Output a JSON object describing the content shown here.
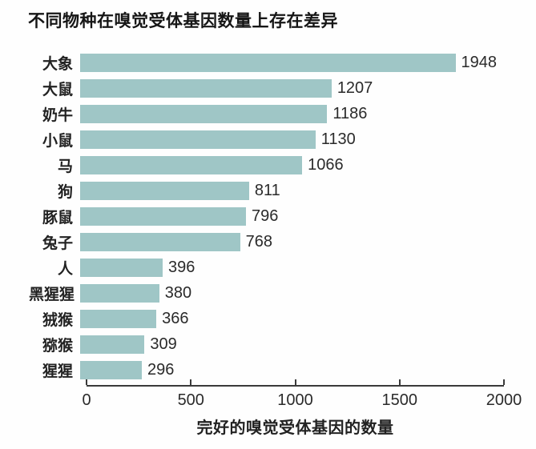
{
  "chart_data": {
    "type": "bar",
    "orientation": "horizontal",
    "title": "不同物种在嗅觉受体基因数量上存在差异",
    "categories": [
      "大象",
      "大鼠",
      "奶牛",
      "小鼠",
      "马",
      "狗",
      "豚鼠",
      "兔子",
      "人",
      "黑猩猩",
      "狨猴",
      "猕猴",
      "猩猩"
    ],
    "values": [
      1948,
      1207,
      1186,
      1130,
      1066,
      811,
      796,
      768,
      396,
      380,
      366,
      309,
      296
    ],
    "xlabel": "完好的嗅觉受体基因的数量",
    "xlim": [
      0,
      2000
    ],
    "xticks": [
      0,
      500,
      1000,
      1500,
      2000
    ],
    "bar_color": "#9fc6c6",
    "axis_color": "#3a3a3a",
    "grid": false,
    "legend": false
  }
}
